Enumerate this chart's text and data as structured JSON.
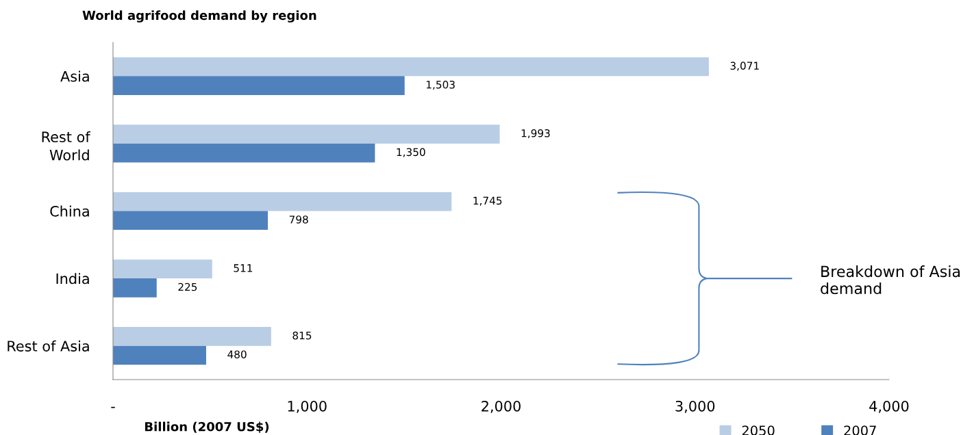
{
  "chart_data": {
    "type": "bar",
    "orientation": "horizontal",
    "title": "World agrifood demand by region",
    "xlabel": "Billion (2007 US$)",
    "categories": [
      "Asia",
      "Rest of\nWorld",
      "China",
      "India",
      "Rest of Asia"
    ],
    "series": [
      {
        "name": "2050",
        "color": "#b9cde5",
        "values": [
          3071,
          1993,
          1745,
          511,
          815
        ],
        "value_labels": [
          "3,071",
          "1,993",
          "1,745",
          "511",
          "815"
        ]
      },
      {
        "name": "2007",
        "color": "#4f81bd",
        "values": [
          1503,
          1350,
          798,
          225,
          480
        ],
        "value_labels": [
          "1,503",
          "1,350",
          "798",
          "225",
          "480"
        ]
      }
    ],
    "xlim": [
      0,
      4000
    ],
    "xticks": [
      {
        "value": 0,
        "label": "-"
      },
      {
        "value": 1000,
        "label": "1,000"
      },
      {
        "value": 2000,
        "label": "2,000"
      },
      {
        "value": 3000,
        "label": "3,000"
      },
      {
        "value": 4000,
        "label": "4,000"
      }
    ],
    "grid": false,
    "legend": "bottom right",
    "annotations": [
      "Breakdown of Asia demand"
    ]
  }
}
